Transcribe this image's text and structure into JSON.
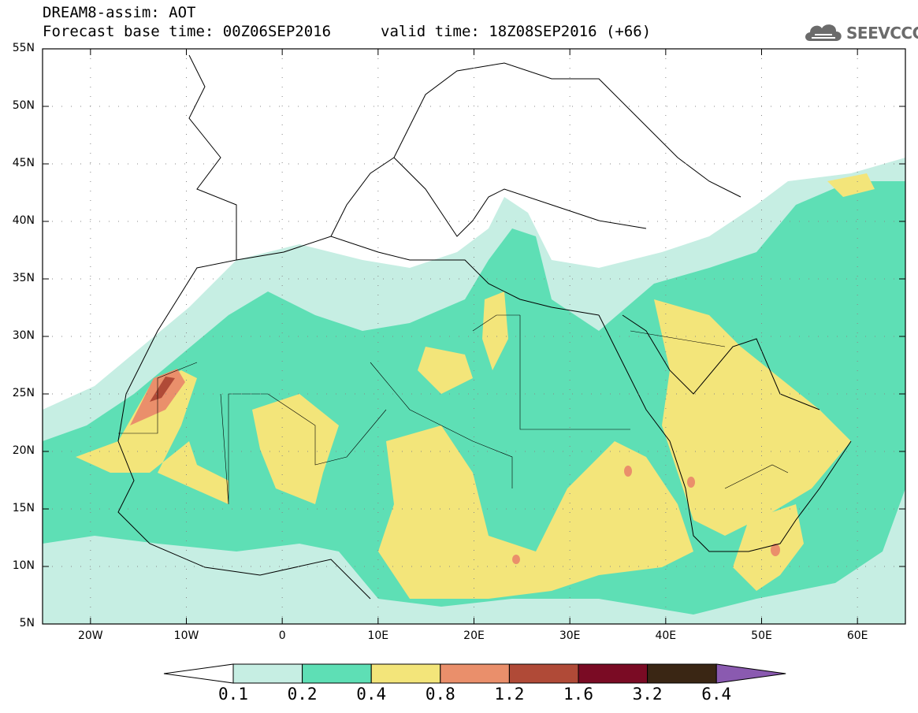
{
  "header": {
    "title": "DREAM8-assim: AOT",
    "base_time": "Forecast base time: 00Z06SEP2016",
    "valid_time": "valid time: 18Z08SEP2016 (+66)"
  },
  "logo": {
    "text": "SEEVCCC",
    "icon": "cloud-icon"
  },
  "map": {
    "lat_labels": [
      "55N",
      "50N",
      "45N",
      "40N",
      "35N",
      "30N",
      "25N",
      "20N",
      "15N",
      "10N",
      "5N"
    ],
    "lon_labels": [
      "20W",
      "10W",
      "0",
      "10E",
      "20E",
      "30E",
      "40E",
      "50E",
      "60E"
    ],
    "fill_colors": {
      "c01": "#c6eee3",
      "c02": "#5edfb5",
      "c04": "#f3e57a",
      "c08": "#ea8f6b",
      "c12": "#b04a37"
    }
  },
  "colorbar": {
    "ticks": [
      "0.1",
      "0.2",
      "0.4",
      "0.8",
      "1.2",
      "1.6",
      "3.2",
      "6.4"
    ],
    "colors": [
      "#ffffff",
      "#c6eee3",
      "#5edfb5",
      "#f3e57a",
      "#ea8f6b",
      "#b04a37",
      "#7a0b24",
      "#3a2614",
      "#8a5ab0"
    ]
  }
}
